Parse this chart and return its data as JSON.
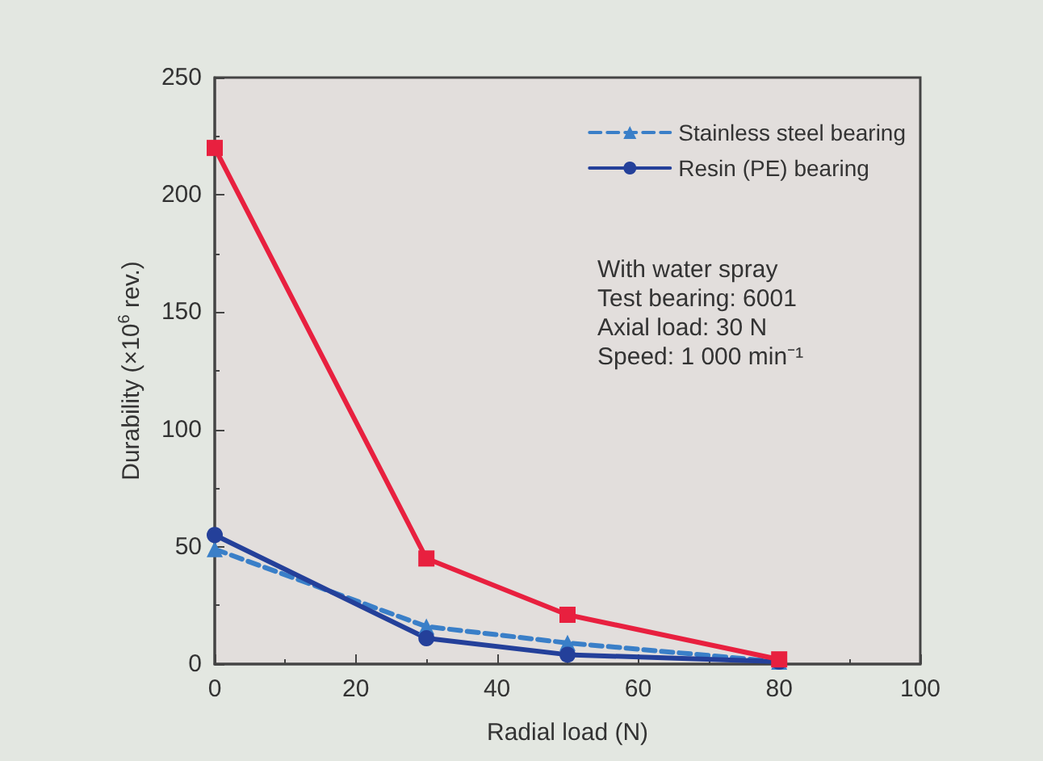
{
  "chart_data": {
    "type": "line",
    "xlabel": "Radial load (N)",
    "ylabel": "Durability (×10$^{6}$ rev.)",
    "x": [
      0,
      30,
      50,
      80
    ],
    "series": [
      {
        "name": "Stainless steel bearing",
        "color": "#3a7fc8",
        "values": [
          49,
          16,
          9,
          1
        ],
        "marker": "triangle",
        "line_style": "dashed"
      },
      {
        "name": "Resin (PE) bearing",
        "color": "#24409a",
        "values": [
          55,
          11,
          4,
          1
        ],
        "marker": "circle",
        "line_style": "solid"
      },
      {
        "color": "#e8203f",
        "values": [
          220,
          45,
          21,
          2
        ],
        "marker": "square",
        "line_style": "solid"
      }
    ],
    "xlim": [
      0,
      100
    ],
    "xticks": [
      0,
      20,
      40,
      60,
      80,
      100
    ],
    "ylim": [
      0,
      250
    ],
    "yticks": [
      0,
      50,
      100,
      150,
      200,
      250
    ],
    "grid": false,
    "legend": "top right",
    "annotations": [
      "With water spray",
      "Test bearing: 6001",
      "Axial load: 30 N",
      "Speed: 1 000 min⁻¹"
    ]
  }
}
